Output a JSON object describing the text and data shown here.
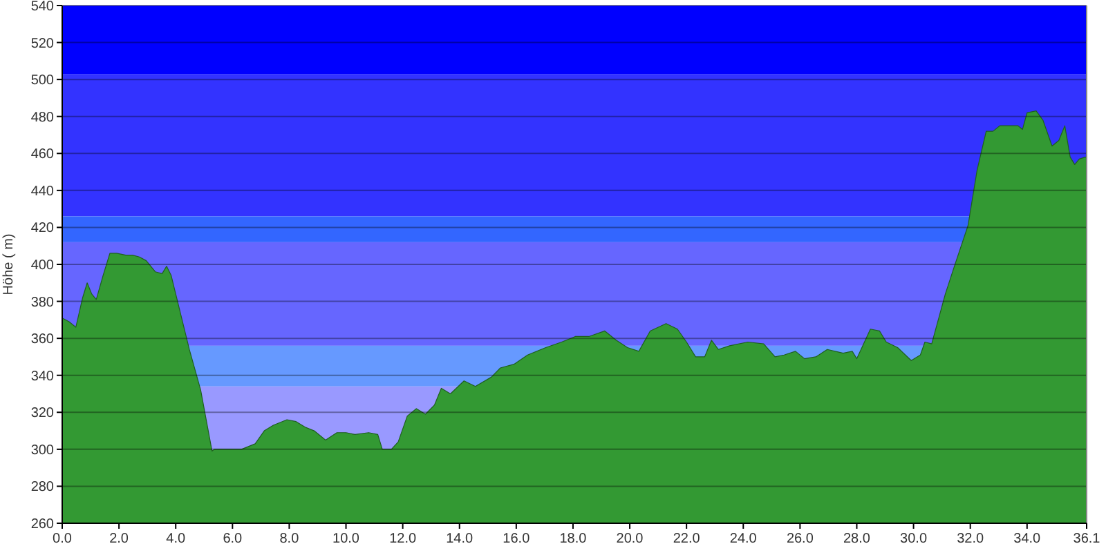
{
  "chart_data": {
    "type": "area",
    "ylabel": "Höhe ( m)",
    "x": [
      0,
      0.24,
      0.48,
      0.72,
      0.88,
      1.04,
      1.2,
      1.44,
      1.68,
      1.92,
      2.24,
      2.48,
      2.72,
      2.96,
      3.28,
      3.52,
      3.68,
      3.84,
      4.16,
      4.48,
      4.88,
      5.28,
      5.36,
      5.84,
      6.32,
      6.8,
      7.12,
      7.44,
      7.92,
      8.24,
      8.56,
      8.88,
      9.28,
      9.68,
      10.0,
      10.32,
      10.8,
      11.12,
      11.28,
      11.6,
      11.84,
      12.16,
      12.48,
      12.8,
      13.12,
      13.36,
      13.68,
      14.16,
      14.56,
      15.12,
      15.44,
      15.92,
      16.4,
      17.04,
      17.6,
      18.08,
      18.56,
      19.12,
      19.52,
      19.92,
      20.32,
      20.72,
      21.28,
      21.68,
      22.0,
      22.32,
      22.64,
      22.88,
      23.12,
      23.52,
      24.16,
      24.72,
      25.12,
      25.44,
      25.84,
      26.16,
      26.56,
      26.96,
      27.52,
      27.84,
      28.0,
      28.48,
      28.8,
      29.04,
      29.44,
      29.92,
      30.24,
      30.4,
      30.64,
      31.12,
      31.44,
      31.92,
      32.24,
      32.56,
      32.8,
      33.04,
      33.28,
      33.68,
      33.84,
      34.0,
      34.32,
      34.56,
      34.88,
      35.12,
      35.33,
      35.52,
      35.68,
      35.84,
      36.05,
      36.1
    ],
    "series": [
      {
        "color": "#339933",
        "values": [
          371,
          369,
          366,
          382,
          390,
          384,
          381,
          394,
          406,
          406,
          405,
          405,
          404,
          402,
          396,
          395,
          399,
          394,
          374,
          354,
          332,
          299,
          300,
          300,
          300,
          303,
          310,
          313,
          316,
          315,
          312,
          310,
          305,
          309,
          309,
          308,
          309,
          308,
          300,
          300,
          304,
          318,
          322,
          319,
          324,
          333,
          330,
          337,
          334,
          339,
          344,
          346,
          351,
          355,
          358,
          361,
          361,
          364,
          359,
          355,
          353,
          364,
          368,
          365,
          358,
          350,
          350,
          359,
          354,
          356,
          358,
          357,
          350,
          351,
          353,
          349,
          350,
          354,
          352,
          353,
          349,
          365,
          364,
          358,
          355,
          348,
          351,
          358,
          357,
          384,
          399,
          421,
          451,
          472,
          472,
          475,
          475,
          475,
          473,
          482,
          483,
          478,
          464,
          467,
          475,
          458,
          454,
          457,
          458,
          458
        ]
      }
    ],
    "xlim": [
      0,
      36.1
    ],
    "xticks": [
      {
        "value": 0,
        "label": "0.0"
      },
      {
        "value": 2,
        "label": "2.0"
      },
      {
        "value": 4,
        "label": "4.0"
      },
      {
        "value": 6,
        "label": "6.0"
      },
      {
        "value": 8,
        "label": "8.0"
      },
      {
        "value": 10,
        "label": "10.0"
      },
      {
        "value": 12,
        "label": "12.0"
      },
      {
        "value": 14,
        "label": "14.0"
      },
      {
        "value": 16,
        "label": "16.0"
      },
      {
        "value": 18,
        "label": "18.0"
      },
      {
        "value": 20,
        "label": "20.0"
      },
      {
        "value": 22,
        "label": "22.0"
      },
      {
        "value": 24,
        "label": "24.0"
      },
      {
        "value": 26,
        "label": "26.0"
      },
      {
        "value": 28,
        "label": "28.0"
      },
      {
        "value": 30,
        "label": "30.0"
      },
      {
        "value": 32,
        "label": "32.0"
      },
      {
        "value": 34,
        "label": "34.0"
      },
      36.1
    ],
    "ylim": [
      260,
      540
    ],
    "yticks": [
      260,
      280,
      300,
      320,
      340,
      360,
      380,
      400,
      420,
      440,
      460,
      480,
      500,
      520,
      540
    ],
    "bands": [
      {
        "axis": "y",
        "from": 503,
        "to": 540,
        "color": "#0000ff"
      },
      {
        "axis": "y",
        "from": 426,
        "to": 503,
        "color": "#3333ff"
      },
      {
        "axis": "y",
        "from": 412,
        "to": 426,
        "color": "#3366ff"
      },
      {
        "axis": "y",
        "from": 356,
        "to": 412,
        "color": "#6666ff"
      },
      {
        "axis": "y",
        "from": 334,
        "to": 356,
        "color": "#6699ff"
      },
      {
        "axis": "y",
        "from": 260,
        "to": 334,
        "color": "#9999ff"
      }
    ],
    "grid": "y"
  }
}
